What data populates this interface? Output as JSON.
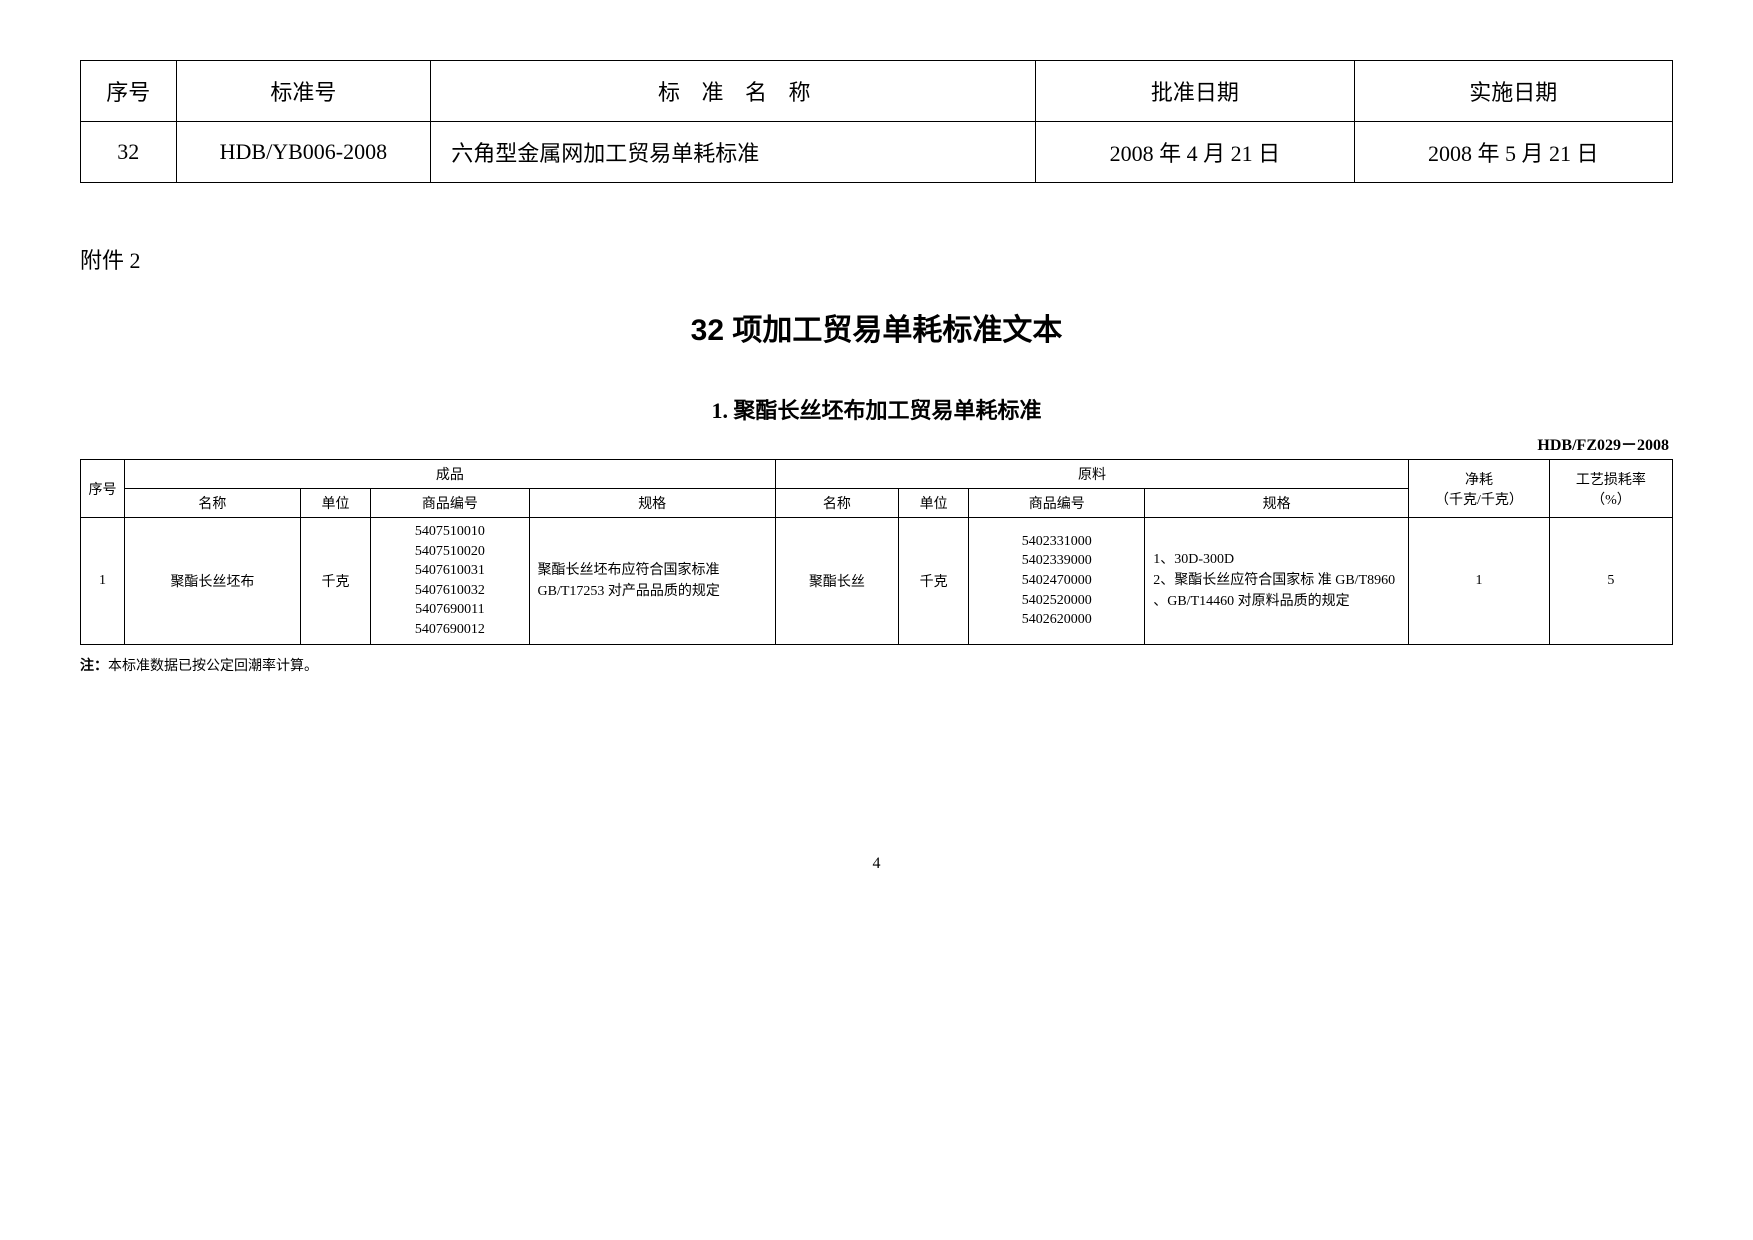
{
  "topTable": {
    "headers": {
      "seq": "序号",
      "stdNo": "标准号",
      "stdName": "标 准 名 称",
      "approvalDate": "批准日期",
      "implDate": "实施日期"
    },
    "row": {
      "seq": "32",
      "stdNo": "HDB/YB006-2008",
      "stdName": "六角型金属网加工贸易单耗标准",
      "approvalDate": "2008 年 4 月 21 日",
      "implDate": "2008 年 5 月 21 日"
    }
  },
  "attachmentLabel": "附件 2",
  "mainTitle": "32 项加工贸易单耗标准文本",
  "subTitle": "1. 聚酯长丝坯布加工贸易单耗标准",
  "standardCode": "HDB/FZ029－2008",
  "detailTable": {
    "groupHeaders": {
      "seq": "序号",
      "product": "成品",
      "material": "原料",
      "netConsumption": "净耗",
      "netConsumptionUnit": "（千克/千克）",
      "processLoss": "工艺损耗率",
      "processLossUnit": "（%）"
    },
    "subHeaders": {
      "name": "名称",
      "unit": "单位",
      "code": "商品编号",
      "spec": "规格"
    },
    "row": {
      "seq": "1",
      "productName": "聚酯长丝坯布",
      "productUnit": "千克",
      "productCodes": "5407510010\n5407510020\n5407610031\n5407610032\n5407690011\n5407690012",
      "productSpec": "聚酯长丝坯布应符合国家标准 GB/T17253 对产品品质的规定",
      "materialName": "聚酯长丝",
      "materialUnit": "千克",
      "materialCodes": "5402331000\n5402339000\n5402470000\n5402520000\n5402620000",
      "materialSpec": "1、30D-300D\n2、聚酯长丝应符合国家标 准 GB/T8960 、GB/T14460 对原料品质的规定",
      "netConsumption": "1",
      "processLoss": "5"
    }
  },
  "noteBold": "注：",
  "noteText": "本标准数据已按公定回潮率计算。",
  "pageNumber": "4"
}
